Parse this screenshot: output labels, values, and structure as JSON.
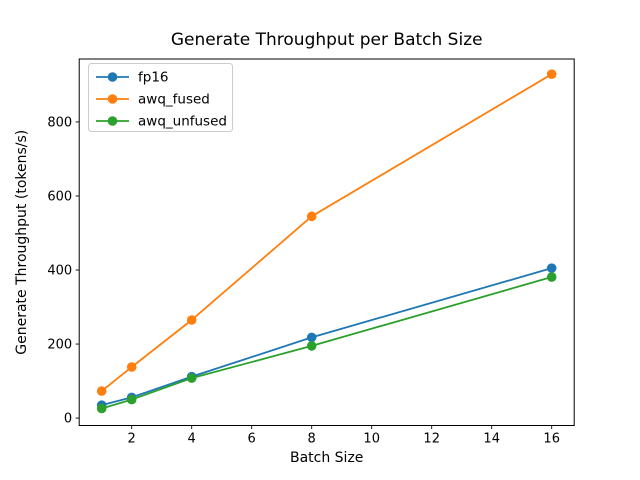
{
  "chart_data": {
    "type": "line",
    "title": "Generate Throughput per Batch Size",
    "xlabel": "Batch Size",
    "ylabel": "Generate Throughput (tokens/s)",
    "x": [
      1,
      2,
      4,
      8,
      16
    ],
    "series": [
      {
        "name": "fp16",
        "color": "#1f77b4",
        "values": [
          35,
          56,
          112,
          218,
          405
        ]
      },
      {
        "name": "awq_fused",
        "color": "#ff7f0e",
        "values": [
          73,
          138,
          265,
          545,
          929
        ]
      },
      {
        "name": "awq_unfused",
        "color": "#2ca02c",
        "values": [
          26,
          50,
          108,
          195,
          381
        ]
      }
    ],
    "xticks": [
      2,
      4,
      6,
      8,
      10,
      12,
      14,
      16
    ],
    "yticks": [
      0,
      200,
      400,
      600,
      800
    ],
    "xlim": [
      0.25,
      16.75
    ],
    "ylim": [
      -20,
      970
    ],
    "grid": false,
    "legend_position": "upper left",
    "marker": "circle",
    "line_width": 1.8,
    "marker_radius": 4.8,
    "axis_color": "#000000",
    "legend_border_color": "#cccccc",
    "background": "#ffffff"
  }
}
